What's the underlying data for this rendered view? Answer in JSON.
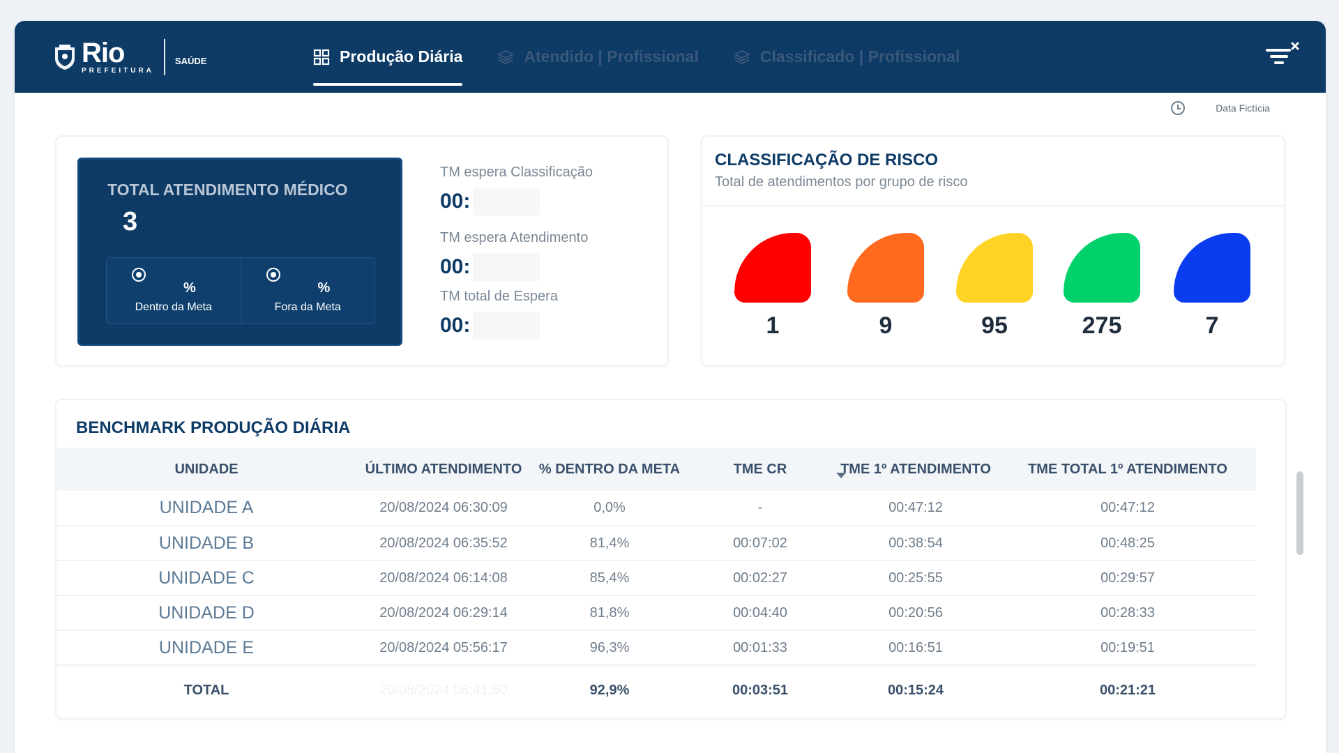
{
  "header": {
    "logo_main": "Rio",
    "logo_sub": "PREFEITURA",
    "logo_dept": "SAÚDE",
    "tabs": [
      {
        "label": "Produção Diária",
        "icon": "dashboard-icon",
        "active": true
      },
      {
        "label": "Atendido | Profissional",
        "icon": "layers-icon",
        "active": false
      },
      {
        "label": "Classificado | Profissional",
        "icon": "layers-icon",
        "active": false
      }
    ],
    "filter_icon": "filter-clear-icon"
  },
  "date_label": "Data Fictícia",
  "kpi": {
    "title": "TOTAL ATENDIMENTO MÉDICO",
    "value": "3",
    "inside": {
      "pct": "%",
      "label": "Dentro da Meta"
    },
    "outside": {
      "pct": "%",
      "label": "Fora da Meta"
    },
    "tm": [
      {
        "label": "TM espera Classificação",
        "value": "00:"
      },
      {
        "label": "TM espera Atendimento",
        "value": "00:"
      },
      {
        "label": "TM total de Espera",
        "value": "00:"
      }
    ]
  },
  "risk": {
    "title": "CLASSIFICAÇÃO DE RISCO",
    "subtitle": "Total de atendimentos por grupo de risco",
    "groups": [
      {
        "color": "#ff0000",
        "value": "1"
      },
      {
        "color": "#ff6a1f",
        "value": "9"
      },
      {
        "color": "#ffd226",
        "value": "95"
      },
      {
        "color": "#00d16a",
        "value": "275"
      },
      {
        "color": "#0a3cf0",
        "value": "7"
      }
    ]
  },
  "benchmark": {
    "title": "BENCHMARK PRODUÇÃO DIÁRIA",
    "columns": [
      "UNIDADE",
      "ÚLTIMO ATENDIMENTO",
      "% DENTRO DA META",
      "TME CR",
      "TME 1º ATENDIMENTO",
      "TME TOTAL 1º ATENDIMENTO"
    ],
    "rows": [
      [
        "UNIDADE A",
        "20/08/2024 06:30:09",
        "0,0%",
        "-",
        "00:47:12",
        "00:47:12"
      ],
      [
        "UNIDADE B",
        "20/08/2024 06:35:52",
        "81,4%",
        "00:07:02",
        "00:38:54",
        "00:48:25"
      ],
      [
        "UNIDADE C",
        "20/08/2024 06:14:08",
        "85,4%",
        "00:02:27",
        "00:25:55",
        "00:29:57"
      ],
      [
        "UNIDADE D",
        "20/08/2024 06:29:14",
        "81,8%",
        "00:04:40",
        "00:20:56",
        "00:28:33"
      ],
      [
        "UNIDADE E",
        "20/08/2024 05:56:17",
        "96,3%",
        "00:01:33",
        "00:16:51",
        "00:19:51"
      ]
    ],
    "total": [
      "TOTAL",
      "20/08/2024 06:41:50",
      "92,9%",
      "00:03:51",
      "00:15:24",
      "00:21:21"
    ]
  }
}
